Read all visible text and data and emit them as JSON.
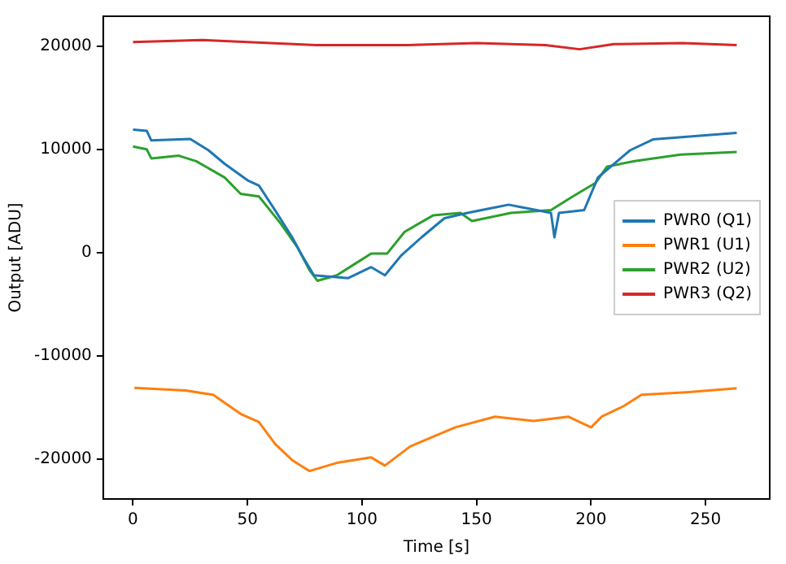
{
  "chart_data": {
    "type": "line",
    "xlabel": "Time [s]",
    "ylabel": "Output [ADU]",
    "xlim": [
      -13,
      278
    ],
    "xticks": [
      0,
      50,
      100,
      150,
      200,
      250
    ],
    "ylim": [
      -23900,
      22900
    ],
    "yticks": [
      -20000,
      -10000,
      0,
      10000,
      20000
    ],
    "grid": false,
    "legend": "right",
    "marker": "none",
    "line_style": "solid",
    "series": [
      {
        "name": "PWR0 (Q1)",
        "color": "#1f77b4",
        "x": [
          0,
          6,
          8,
          25,
          33,
          40,
          50,
          55,
          62,
          69.5,
          74,
          79,
          94,
          104,
          110,
          117,
          126,
          136,
          146,
          164,
          182.5,
          184,
          186,
          197,
          203,
          217,
          227,
          263.6
        ],
        "values": [
          11900,
          11800,
          10860,
          11000,
          9900,
          8600,
          7000,
          6480,
          4100,
          1470,
          -370,
          -2210,
          -2480,
          -1420,
          -2210,
          -320,
          1470,
          3320,
          3840,
          4630,
          3840,
          1470,
          3840,
          4110,
          7270,
          9900,
          10960,
          11590
        ]
      },
      {
        "name": "PWR1 (U1)",
        "color": "#ff7f0e",
        "x": [
          0.6,
          23,
          35,
          47,
          55,
          62,
          69.5,
          77,
          89,
          104,
          110,
          121,
          140.7,
          158,
          175,
          190,
          200,
          204.6,
          214.5,
          222,
          241.5,
          263.6
        ],
        "values": [
          -13120,
          -13390,
          -13800,
          -15650,
          -16440,
          -18550,
          -20130,
          -21190,
          -20400,
          -19870,
          -20660,
          -18810,
          -16960,
          -15920,
          -16330,
          -15920,
          -16960,
          -15920,
          -14860,
          -13800,
          -13550,
          -13170
        ]
      },
      {
        "name": "PWR2 (U2)",
        "color": "#2ca02c",
        "x": [
          0,
          6,
          8,
          20,
          27.6,
          40,
          47,
          55,
          64.5,
          72,
          77,
          80.5,
          89,
          96.5,
          104,
          111,
          118.6,
          131,
          143,
          148,
          165,
          182.5,
          192,
          202,
          207,
          219,
          239,
          263.6
        ],
        "values": [
          10280,
          10000,
          9120,
          9380,
          8850,
          7270,
          5690,
          5430,
          2800,
          430,
          -1690,
          -2740,
          -2210,
          -1160,
          -100,
          -100,
          2000,
          3590,
          3840,
          3050,
          3840,
          4110,
          5430,
          6750,
          8330,
          8850,
          9490,
          9750
        ]
      },
      {
        "name": "PWR3 (Q2)",
        "color": "#d62728",
        "x": [
          0,
          30,
          60,
          80,
          120,
          150,
          180,
          195,
          210,
          240,
          263.6
        ],
        "values": [
          20400,
          20600,
          20300,
          20100,
          20100,
          20300,
          20100,
          19700,
          20200,
          20300,
          20100
        ]
      }
    ]
  }
}
